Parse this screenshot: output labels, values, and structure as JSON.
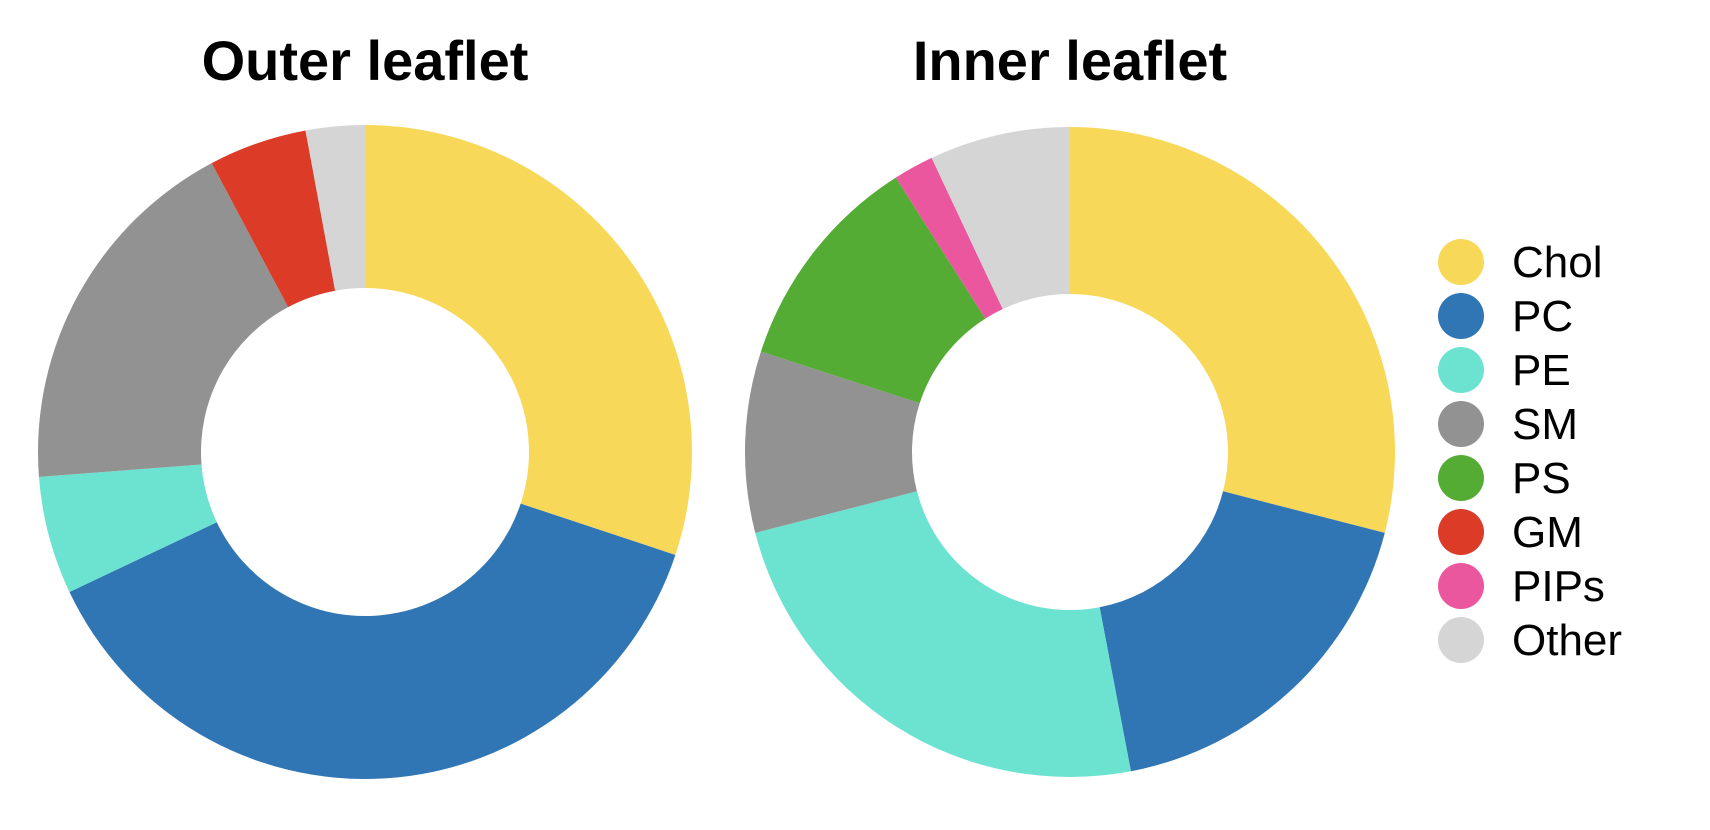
{
  "chart_data": [
    {
      "type": "pie",
      "variant": "donut",
      "title": "Outer leaflet",
      "categories": [
        "Chol",
        "PC",
        "PE",
        "SM",
        "PS",
        "GM",
        "PIPs",
        "Other"
      ],
      "values": [
        31,
        39,
        6,
        19,
        0,
        5,
        0,
        3
      ],
      "unit": "%"
    },
    {
      "type": "pie",
      "variant": "donut",
      "title": "Inner leaflet",
      "categories": [
        "Chol",
        "PC",
        "PE",
        "SM",
        "PS",
        "GM",
        "PIPs",
        "Other"
      ],
      "values": [
        29,
        18,
        24,
        9,
        11,
        0,
        2,
        7
      ],
      "unit": "%"
    }
  ],
  "legend": {
    "position": "right",
    "items": [
      {
        "label": "Chol",
        "color": "#F8D858"
      },
      {
        "label": "PC",
        "color": "#3176B4"
      },
      {
        "label": "PE",
        "color": "#6CE2D0"
      },
      {
        "label": "SM",
        "color": "#929292"
      },
      {
        "label": "PS",
        "color": "#55AC35"
      },
      {
        "label": "GM",
        "color": "#DB3B27"
      },
      {
        "label": "PIPs",
        "color": "#EB579F"
      },
      {
        "label": "Other",
        "color": "#D5D5D5"
      }
    ]
  }
}
